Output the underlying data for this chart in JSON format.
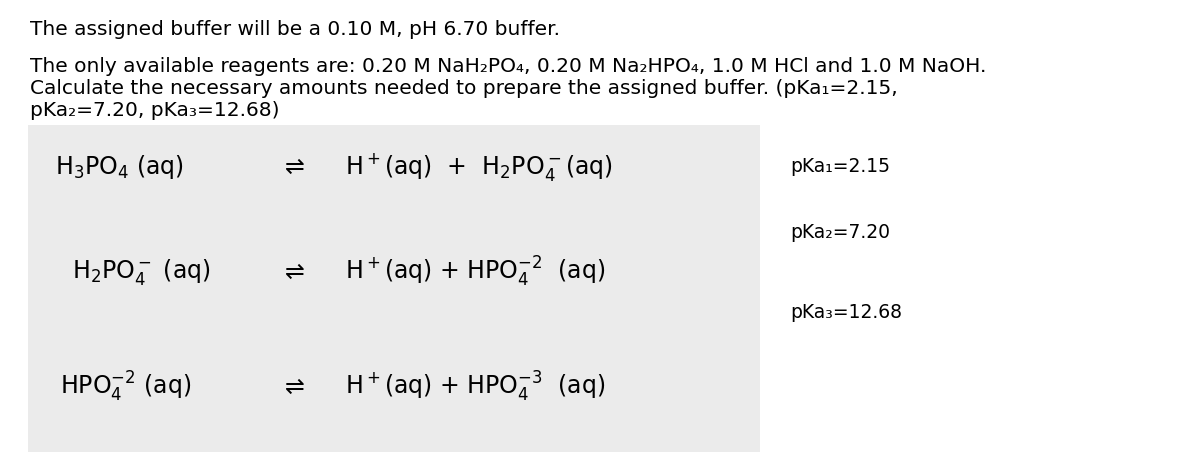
{
  "bg_color": "#ffffff",
  "box_bg": "#ebebeb",
  "fontsize_body": 14.5,
  "fontsize_eq": 17,
  "fontsize_pka": 13.5,
  "pka1_label": "pKa₁=2.15",
  "pka2_label": "pKa₂=7.20",
  "pka3_label": "pKa₃=12.68",
  "line1": "The assigned buffer will be a 0.10 M, pH 6.70 buffer.",
  "line2": "The only available reagents are: 0.20 M NaH₂PO₄, 0.20 M Na₂HPO₄, 1.0 M HCl and 1.0 M NaOH.",
  "line3": "Calculate the necessary amounts needed to prepare the assigned buffer. (pKa₁=2.15,",
  "line4": "pKa₂=7.20, pKa₃=12.68)"
}
